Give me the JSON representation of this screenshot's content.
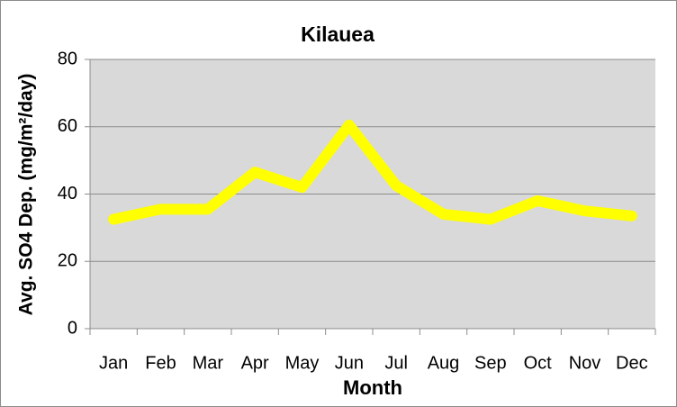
{
  "chart_data": {
    "type": "line",
    "title": "Kilauea",
    "x_label": "Month",
    "y_label": "Avg. SO4 Dep. (mg/m²/day)",
    "categories": [
      "Jan",
      "Feb",
      "Mar",
      "Apr",
      "May",
      "Jun",
      "Jul",
      "Aug",
      "Sep",
      "Oct",
      "Nov",
      "Dec"
    ],
    "values": [
      32.5,
      35.5,
      35.5,
      46.5,
      42,
      60.5,
      42.5,
      34,
      32.5,
      38,
      35,
      33.5
    ],
    "color": "#ffff00",
    "ylim": [
      0,
      80
    ],
    "yticks": [
      0,
      20,
      40,
      60,
      80
    ],
    "grid": true
  }
}
